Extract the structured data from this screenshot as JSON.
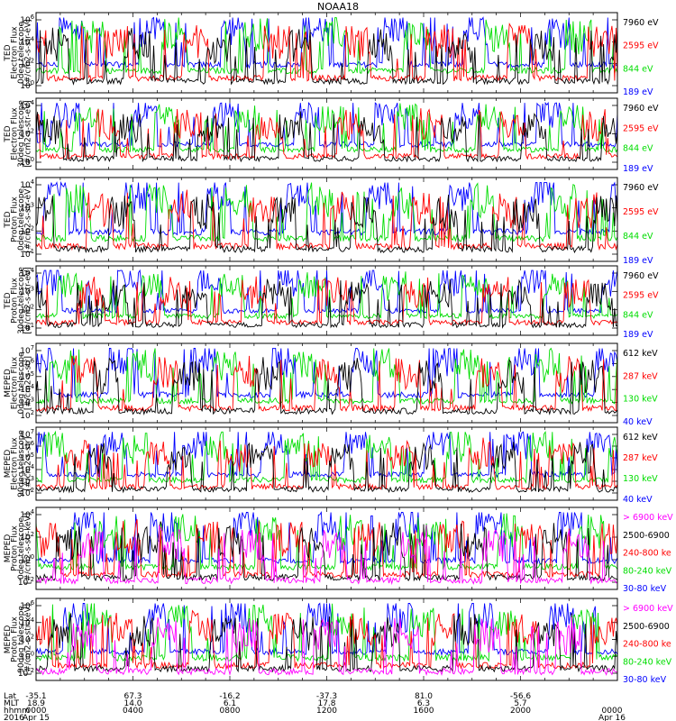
{
  "title": "NOAA18",
  "colors": {
    "black": "#000000",
    "red": "#ff0000",
    "green": "#00dd00",
    "blue": "#0000ff",
    "magenta": "#ff00ff"
  },
  "footer": {
    "row_labels": [
      "Lat",
      "MLT",
      "hhmm",
      "2016"
    ],
    "columns": [
      {
        "lat": "-35.1",
        "mlt": "18.9",
        "hhmm": "0000",
        "date": "Apr 15"
      },
      {
        "lat": "67.3",
        "mlt": "14.0",
        "hhmm": "0400",
        "date": ""
      },
      {
        "lat": "-16.2",
        "mlt": "6.1",
        "hhmm": "0800",
        "date": ""
      },
      {
        "lat": "-37.3",
        "mlt": "17.8",
        "hhmm": "1200",
        "date": ""
      },
      {
        "lat": "81.0",
        "mlt": "6.3",
        "hhmm": "1600",
        "date": ""
      },
      {
        "lat": "-56.6",
        "mlt": "5.7",
        "hhmm": "2000",
        "date": ""
      },
      {
        "lat": "",
        "mlt": "",
        "hhmm": "0000",
        "date": "Apr 16"
      }
    ]
  },
  "chart_data": [
    {
      "type": "line",
      "ylabel": [
        "TED",
        "Electron Flux",
        "0deg telescope",
        "[#/cm2-s-str-eV]"
      ],
      "y_ticks": [
        "10^0",
        "10^2",
        "10^4",
        "10^6"
      ],
      "ylim": [
        1,
        1000000
      ],
      "log_scale": true,
      "series": [
        {
          "name": "7960 eV",
          "color": "#000000"
        },
        {
          "name": "2595 eV",
          "color": "#ff0000"
        },
        {
          "name": "844 eV",
          "color": "#00dd00"
        },
        {
          "name": "189 eV",
          "color": "#0000ff"
        }
      ]
    },
    {
      "type": "line",
      "ylabel": [
        "TED",
        "Electron Flux",
        "30deg telescope",
        "[#/cm2-s-str-eV]"
      ],
      "y_ticks": [
        "10^0",
        "10^2",
        "10^4"
      ],
      "ylim": [
        1,
        100000
      ],
      "log_scale": true,
      "series": [
        {
          "name": "7960 eV",
          "color": "#000000"
        },
        {
          "name": "2595 eV",
          "color": "#ff0000"
        },
        {
          "name": "844 eV",
          "color": "#00dd00"
        },
        {
          "name": "189 eV",
          "color": "#0000ff"
        }
      ]
    },
    {
      "type": "line",
      "ylabel": [
        "TED",
        "Proton Flux",
        "0deg telescope",
        "[#/cm2-s-str-eV]"
      ],
      "y_ticks": [
        "10^1",
        "10^2",
        "10^3",
        "10^4"
      ],
      "ylim": [
        1,
        100000
      ],
      "log_scale": true,
      "series": [
        {
          "name": "7960 eV",
          "color": "#000000"
        },
        {
          "name": "2595 eV",
          "color": "#ff0000"
        },
        {
          "name": "844 eV",
          "color": "#00dd00"
        },
        {
          "name": "189 eV",
          "color": "#0000ff"
        }
      ]
    },
    {
      "type": "line",
      "ylabel": [
        "TED",
        "Proton Flux",
        "30deg telescope",
        "[#/cm2-s-str-eV]"
      ],
      "y_ticks": [
        "10^1",
        "10^2",
        "10^3",
        "10^4"
      ],
      "ylim": [
        1,
        100000
      ],
      "log_scale": true,
      "series": [
        {
          "name": "7960 eV",
          "color": "#000000"
        },
        {
          "name": "2595 eV",
          "color": "#ff0000"
        },
        {
          "name": "844 eV",
          "color": "#00dd00"
        },
        {
          "name": "189 eV",
          "color": "#0000ff"
        }
      ]
    },
    {
      "type": "line",
      "ylabel": [
        "MEPED",
        "Electron Flux",
        "0deg telescope",
        "[#/cm2-s-str]"
      ],
      "y_ticks": [
        "10^2",
        "10^3",
        "10^4",
        "10^5",
        "10^6",
        "10^7"
      ],
      "ylim": [
        100,
        10000000
      ],
      "log_scale": true,
      "series": [
        {
          "name": "612 keV",
          "color": "#000000"
        },
        {
          "name": "287 keV",
          "color": "#ff0000"
        },
        {
          "name": "130 keV",
          "color": "#00dd00"
        },
        {
          "name": "40 keV",
          "color": "#0000ff"
        }
      ]
    },
    {
      "type": "line",
      "ylabel": [
        "MEPED",
        "Electron Flux",
        "90deg telescope",
        "[#/cm2-s-str]"
      ],
      "y_ticks": [
        "10^2",
        "10^3",
        "10^4",
        "10^5",
        "10^6",
        "10^7"
      ],
      "ylim": [
        100,
        10000000
      ],
      "log_scale": true,
      "series": [
        {
          "name": "612 keV",
          "color": "#000000"
        },
        {
          "name": "287 keV",
          "color": "#ff0000"
        },
        {
          "name": "130 keV",
          "color": "#00dd00"
        },
        {
          "name": "40 keV",
          "color": "#0000ff"
        }
      ]
    },
    {
      "type": "line",
      "ylabel": [
        "MEPED",
        "Proton Flux",
        "0deg telescope",
        "[#/cm2-s-str-keV]"
      ],
      "y_ticks": [
        "10^-2",
        "10^0",
        "10^2",
        "10^4"
      ],
      "ylim": [
        0.01,
        100000
      ],
      "log_scale": true,
      "series": [
        {
          "name": "> 6900 keV",
          "color": "#ff00ff"
        },
        {
          "name": "2500-6900",
          "color": "#000000"
        },
        {
          "name": "240-800 ke",
          "color": "#ff0000"
        },
        {
          "name": "80-240 keV",
          "color": "#00dd00"
        },
        {
          "name": "30-80 keV",
          "color": "#0000ff"
        }
      ]
    },
    {
      "type": "line",
      "ylabel": [
        "MEPED",
        "Proton Flux",
        "90deg telescope",
        "[#/cm2-s-str-keV]"
      ],
      "y_ticks": [
        "10^-2",
        "10^0",
        "10^2",
        "10^4",
        "10^6"
      ],
      "ylim": [
        0.01,
        1000000
      ],
      "log_scale": true,
      "series": [
        {
          "name": "> 6900 keV",
          "color": "#ff00ff"
        },
        {
          "name": "2500-6900",
          "color": "#000000"
        },
        {
          "name": "240-800 ke",
          "color": "#ff0000"
        },
        {
          "name": "80-240 keV",
          "color": "#00dd00"
        },
        {
          "name": "30-80 keV",
          "color": "#0000ff"
        }
      ]
    }
  ]
}
